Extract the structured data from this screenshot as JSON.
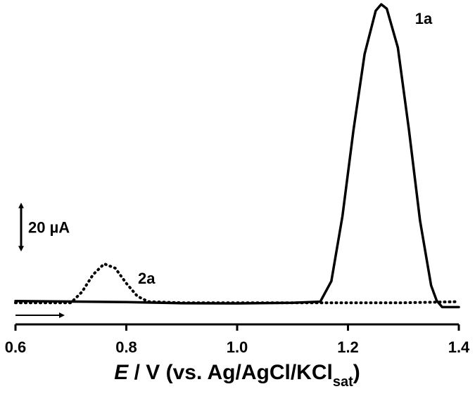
{
  "chart_data": {
    "type": "line",
    "x_label": {
      "italic": "E",
      "text": " / V (vs. Ag/AgCl/KCl",
      "sub": "sat",
      "close": ")"
    },
    "xlim": [
      0.6,
      1.4
    ],
    "xticks": [
      0.6,
      0.8,
      {
        "value": 1.0,
        "label": "1.0"
      },
      1.2,
      1.4
    ],
    "ylim": [
      -10,
      140
    ],
    "scale_bar": {
      "value": 20,
      "label": "20 µA"
    },
    "series": [
      {
        "name": "1a",
        "color": "#000000",
        "dash": "solid",
        "x": [
          0.6,
          0.8,
          0.9,
          1.0,
          1.1,
          1.15,
          1.17,
          1.19,
          1.21,
          1.23,
          1.25,
          1.26,
          1.27,
          1.29,
          1.31,
          1.33,
          1.35,
          1.36,
          1.37,
          1.4
        ],
        "values": [
          0.8,
          0.3,
          -0.2,
          -0.3,
          0,
          0.5,
          10,
          40,
          80,
          115,
          135,
          138,
          136,
          118,
          80,
          38,
          8,
          1,
          -2,
          -2
        ]
      },
      {
        "name": "2a",
        "color": "#000000",
        "dash": "dotted",
        "x": [
          0.6,
          0.7,
          0.72,
          0.74,
          0.76,
          0.78,
          0.8,
          0.82,
          0.84,
          0.9,
          1.0,
          1.2,
          1.3,
          1.4
        ],
        "values": [
          0,
          0,
          5,
          13,
          18,
          16,
          9,
          3,
          0.5,
          0,
          0,
          0,
          0,
          0.5
        ]
      }
    ]
  }
}
